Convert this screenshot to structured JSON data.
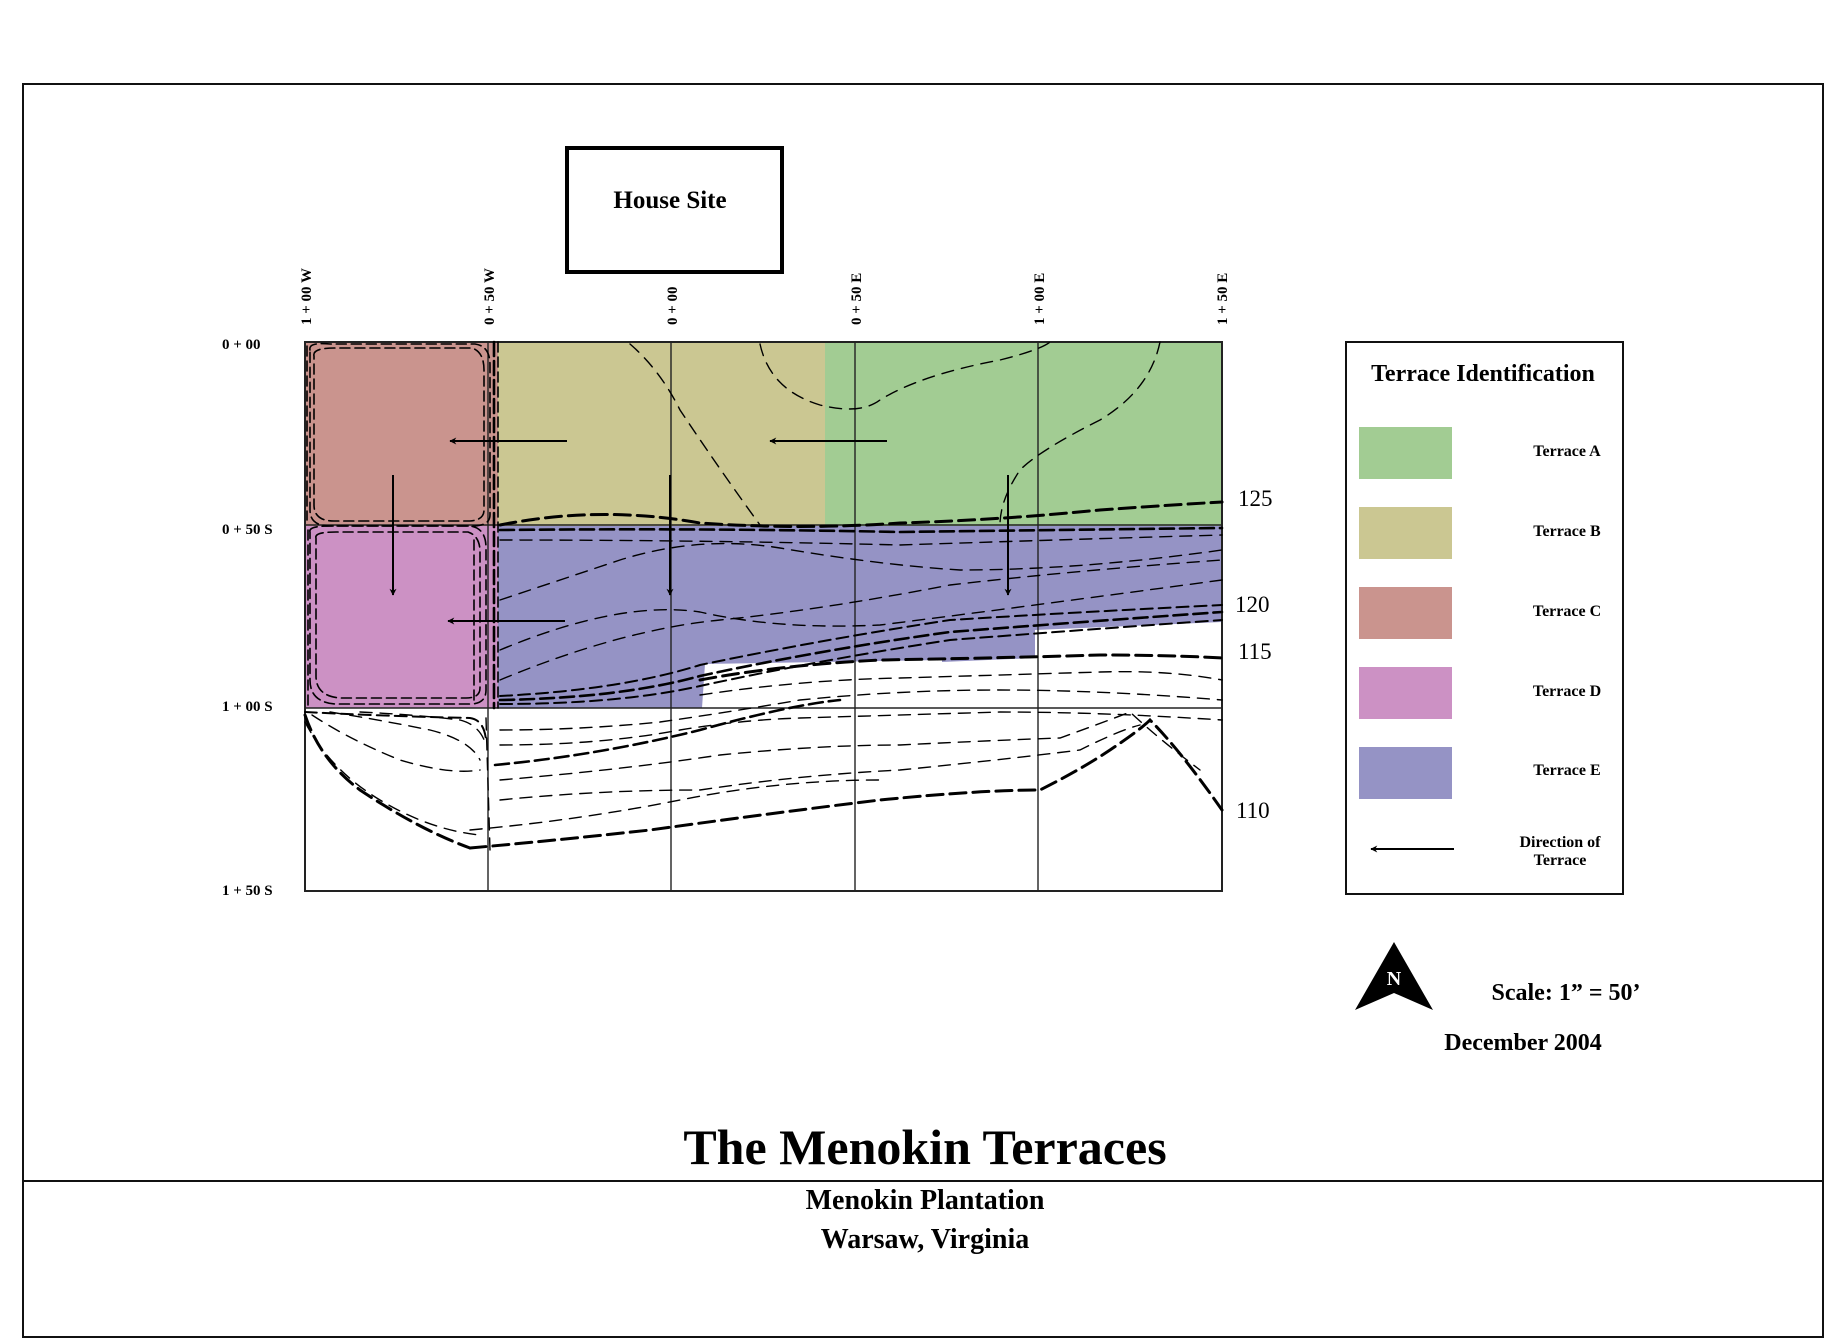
{
  "house_site": {
    "label": "House Site"
  },
  "grid": {
    "columns": [
      "1 + 00 W",
      "0 + 50 W",
      "0 + 00",
      "0 + 50 E",
      "1 + 00 E",
      "1 + 50 E"
    ],
    "rows": [
      "0 + 00",
      "0 + 50 S",
      "1 + 00 S",
      "1 + 50 S"
    ]
  },
  "contours": [
    "125",
    "120",
    "115",
    "110"
  ],
  "terraces": [
    {
      "id": "A",
      "color": "#a2cc93"
    },
    {
      "id": "B",
      "color": "#cbc792"
    },
    {
      "id": "C",
      "color": "#ca948e"
    },
    {
      "id": "D",
      "color": "#cc91c4"
    },
    {
      "id": "E",
      "color": "#9593c5"
    }
  ],
  "legend": {
    "title": "Terrace Identification",
    "items": [
      {
        "label": "Terrace A",
        "color": "#a2cc93"
      },
      {
        "label": "Terrace B",
        "color": "#cbc792"
      },
      {
        "label": "Terrace C",
        "color": "#ca948e"
      },
      {
        "label": "Terrace D",
        "color": "#cc91c4"
      },
      {
        "label": "Terrace E",
        "color": "#9593c5"
      }
    ],
    "direction_label_1": "Direction of",
    "direction_label_2": "Terrace"
  },
  "north": {
    "letter": "N"
  },
  "scale": "Scale: 1” = 50’",
  "date": "December 2004",
  "title": "The Menokin Terraces",
  "subtitle_1": "Menokin Plantation",
  "subtitle_2": "Warsaw, Virginia"
}
